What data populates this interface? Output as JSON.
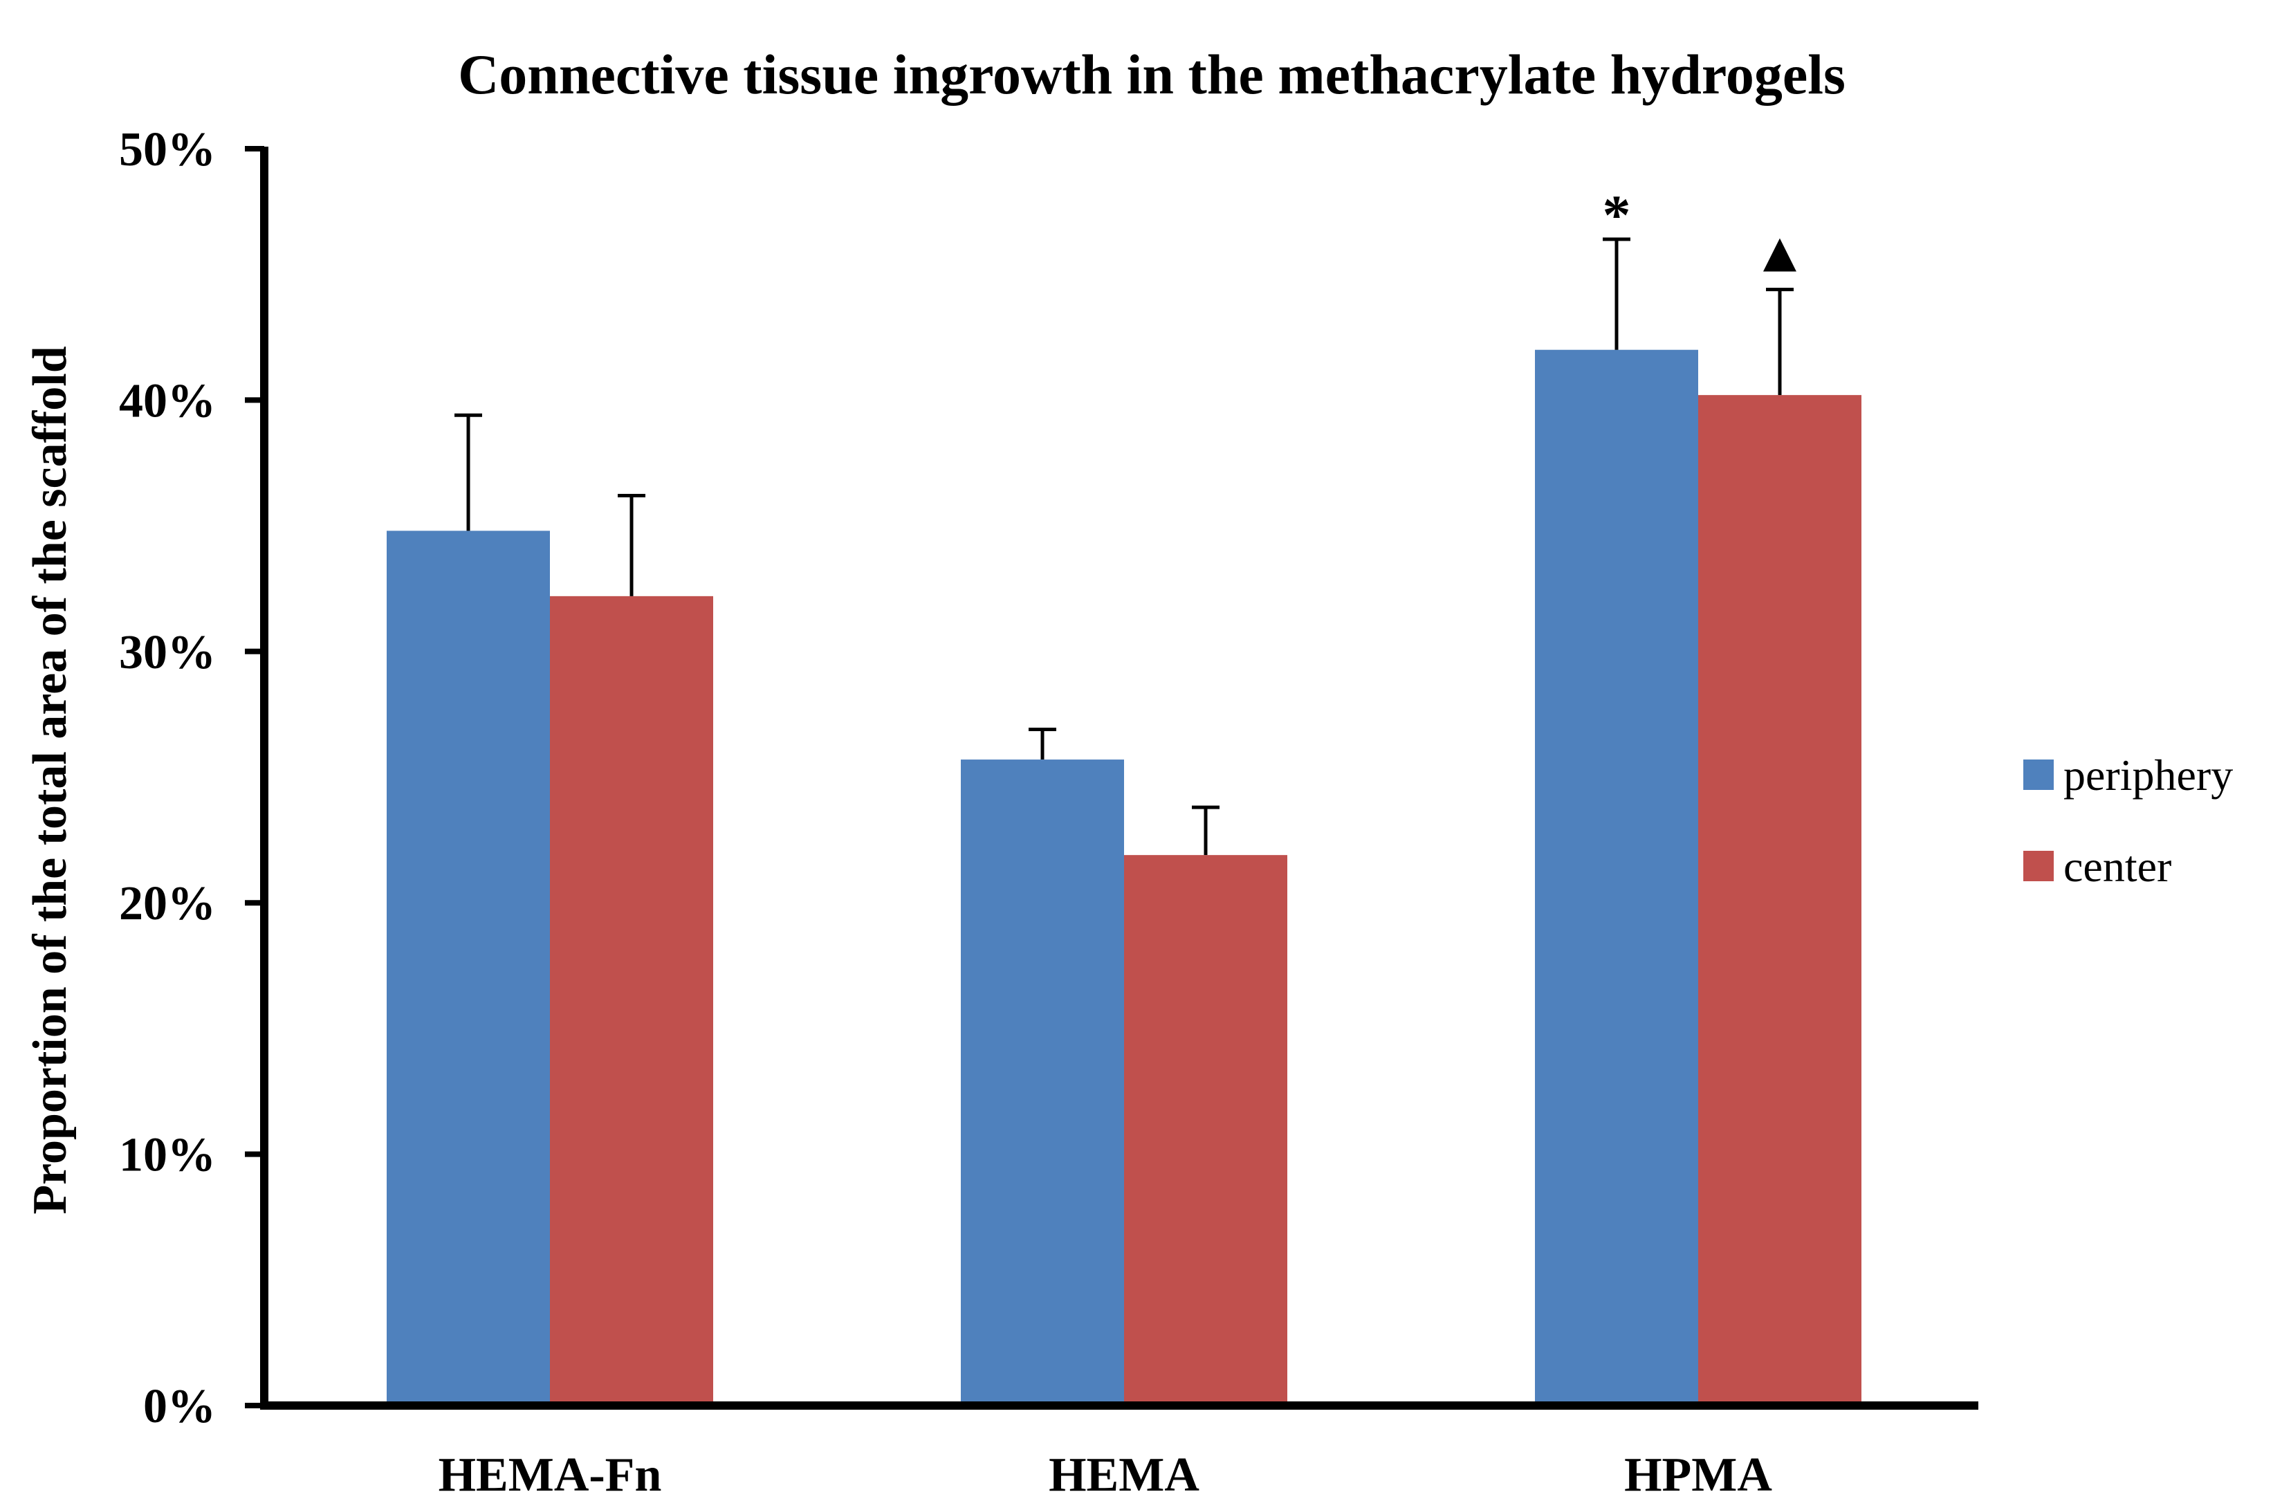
{
  "chart_data": {
    "type": "bar",
    "title": "Connective tissue ingrowth in the methacrylate hydrogels",
    "xlabel": "",
    "ylabel": "Proportion of the total area of the scaffold",
    "categories": [
      "HEMA-Fn",
      "HEMA",
      "HPMA"
    ],
    "series": [
      {
        "name": "periphery",
        "color": "#4F81BD",
        "values": [
          34.8,
          25.7,
          42.0
        ],
        "error_plus": [
          4.6,
          1.2,
          4.4
        ]
      },
      {
        "name": "center",
        "color": "#C0504D",
        "values": [
          32.2,
          21.9,
          40.2
        ],
        "error_plus": [
          4.0,
          1.9,
          4.2
        ]
      }
    ],
    "ylim": [
      0,
      50
    ],
    "yticks": [
      0,
      10,
      20,
      30,
      40,
      50
    ],
    "ytick_labels": [
      "0%",
      "10%",
      "20%",
      "30%",
      "40%",
      "50%"
    ],
    "grid": false,
    "legend_position": "right",
    "annotations": [
      {
        "category": "HPMA",
        "series": "periphery",
        "text": "*"
      },
      {
        "category": "HPMA",
        "series": "center",
        "text": "▲"
      }
    ]
  }
}
